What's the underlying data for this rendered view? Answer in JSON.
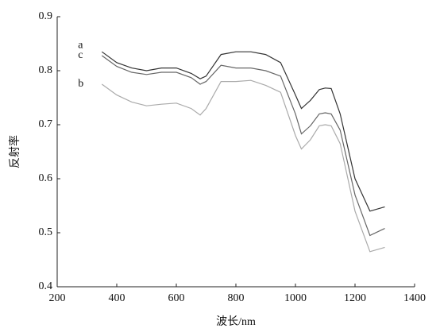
{
  "chart_data": {
    "type": "line",
    "x_label": "波长/nm",
    "y_label": "反射率",
    "x": [
      350,
      400,
      450,
      500,
      550,
      600,
      650,
      680,
      700,
      750,
      800,
      850,
      900,
      950,
      1000,
      1020,
      1050,
      1080,
      1100,
      1120,
      1150,
      1200,
      1250,
      1300
    ],
    "series": [
      {
        "name": "a",
        "color": "#333333",
        "values": [
          0.835,
          0.815,
          0.805,
          0.8,
          0.805,
          0.805,
          0.795,
          0.785,
          0.79,
          0.83,
          0.835,
          0.835,
          0.83,
          0.815,
          0.755,
          0.73,
          0.745,
          0.765,
          0.768,
          0.767,
          0.72,
          0.6,
          0.54,
          0.548
        ]
      },
      {
        "name": "c",
        "color": "#666666",
        "values": [
          0.828,
          0.808,
          0.797,
          0.793,
          0.797,
          0.797,
          0.787,
          0.775,
          0.78,
          0.81,
          0.805,
          0.805,
          0.8,
          0.79,
          0.72,
          0.683,
          0.698,
          0.72,
          0.722,
          0.72,
          0.69,
          0.57,
          0.495,
          0.508
        ]
      },
      {
        "name": "b",
        "color": "#aaaaaa",
        "values": [
          0.775,
          0.755,
          0.742,
          0.735,
          0.738,
          0.74,
          0.73,
          0.718,
          0.73,
          0.78,
          0.78,
          0.782,
          0.773,
          0.76,
          0.68,
          0.655,
          0.672,
          0.698,
          0.7,
          0.698,
          0.665,
          0.54,
          0.465,
          0.473
        ]
      }
    ],
    "xlim": [
      200,
      1400
    ],
    "xticks": [
      200,
      400,
      600,
      800,
      1000,
      1200,
      1400
    ],
    "ylim": [
      0.4,
      0.9
    ],
    "yticks": [
      0.4,
      0.5,
      0.6,
      0.7,
      0.8,
      0.9
    ]
  }
}
